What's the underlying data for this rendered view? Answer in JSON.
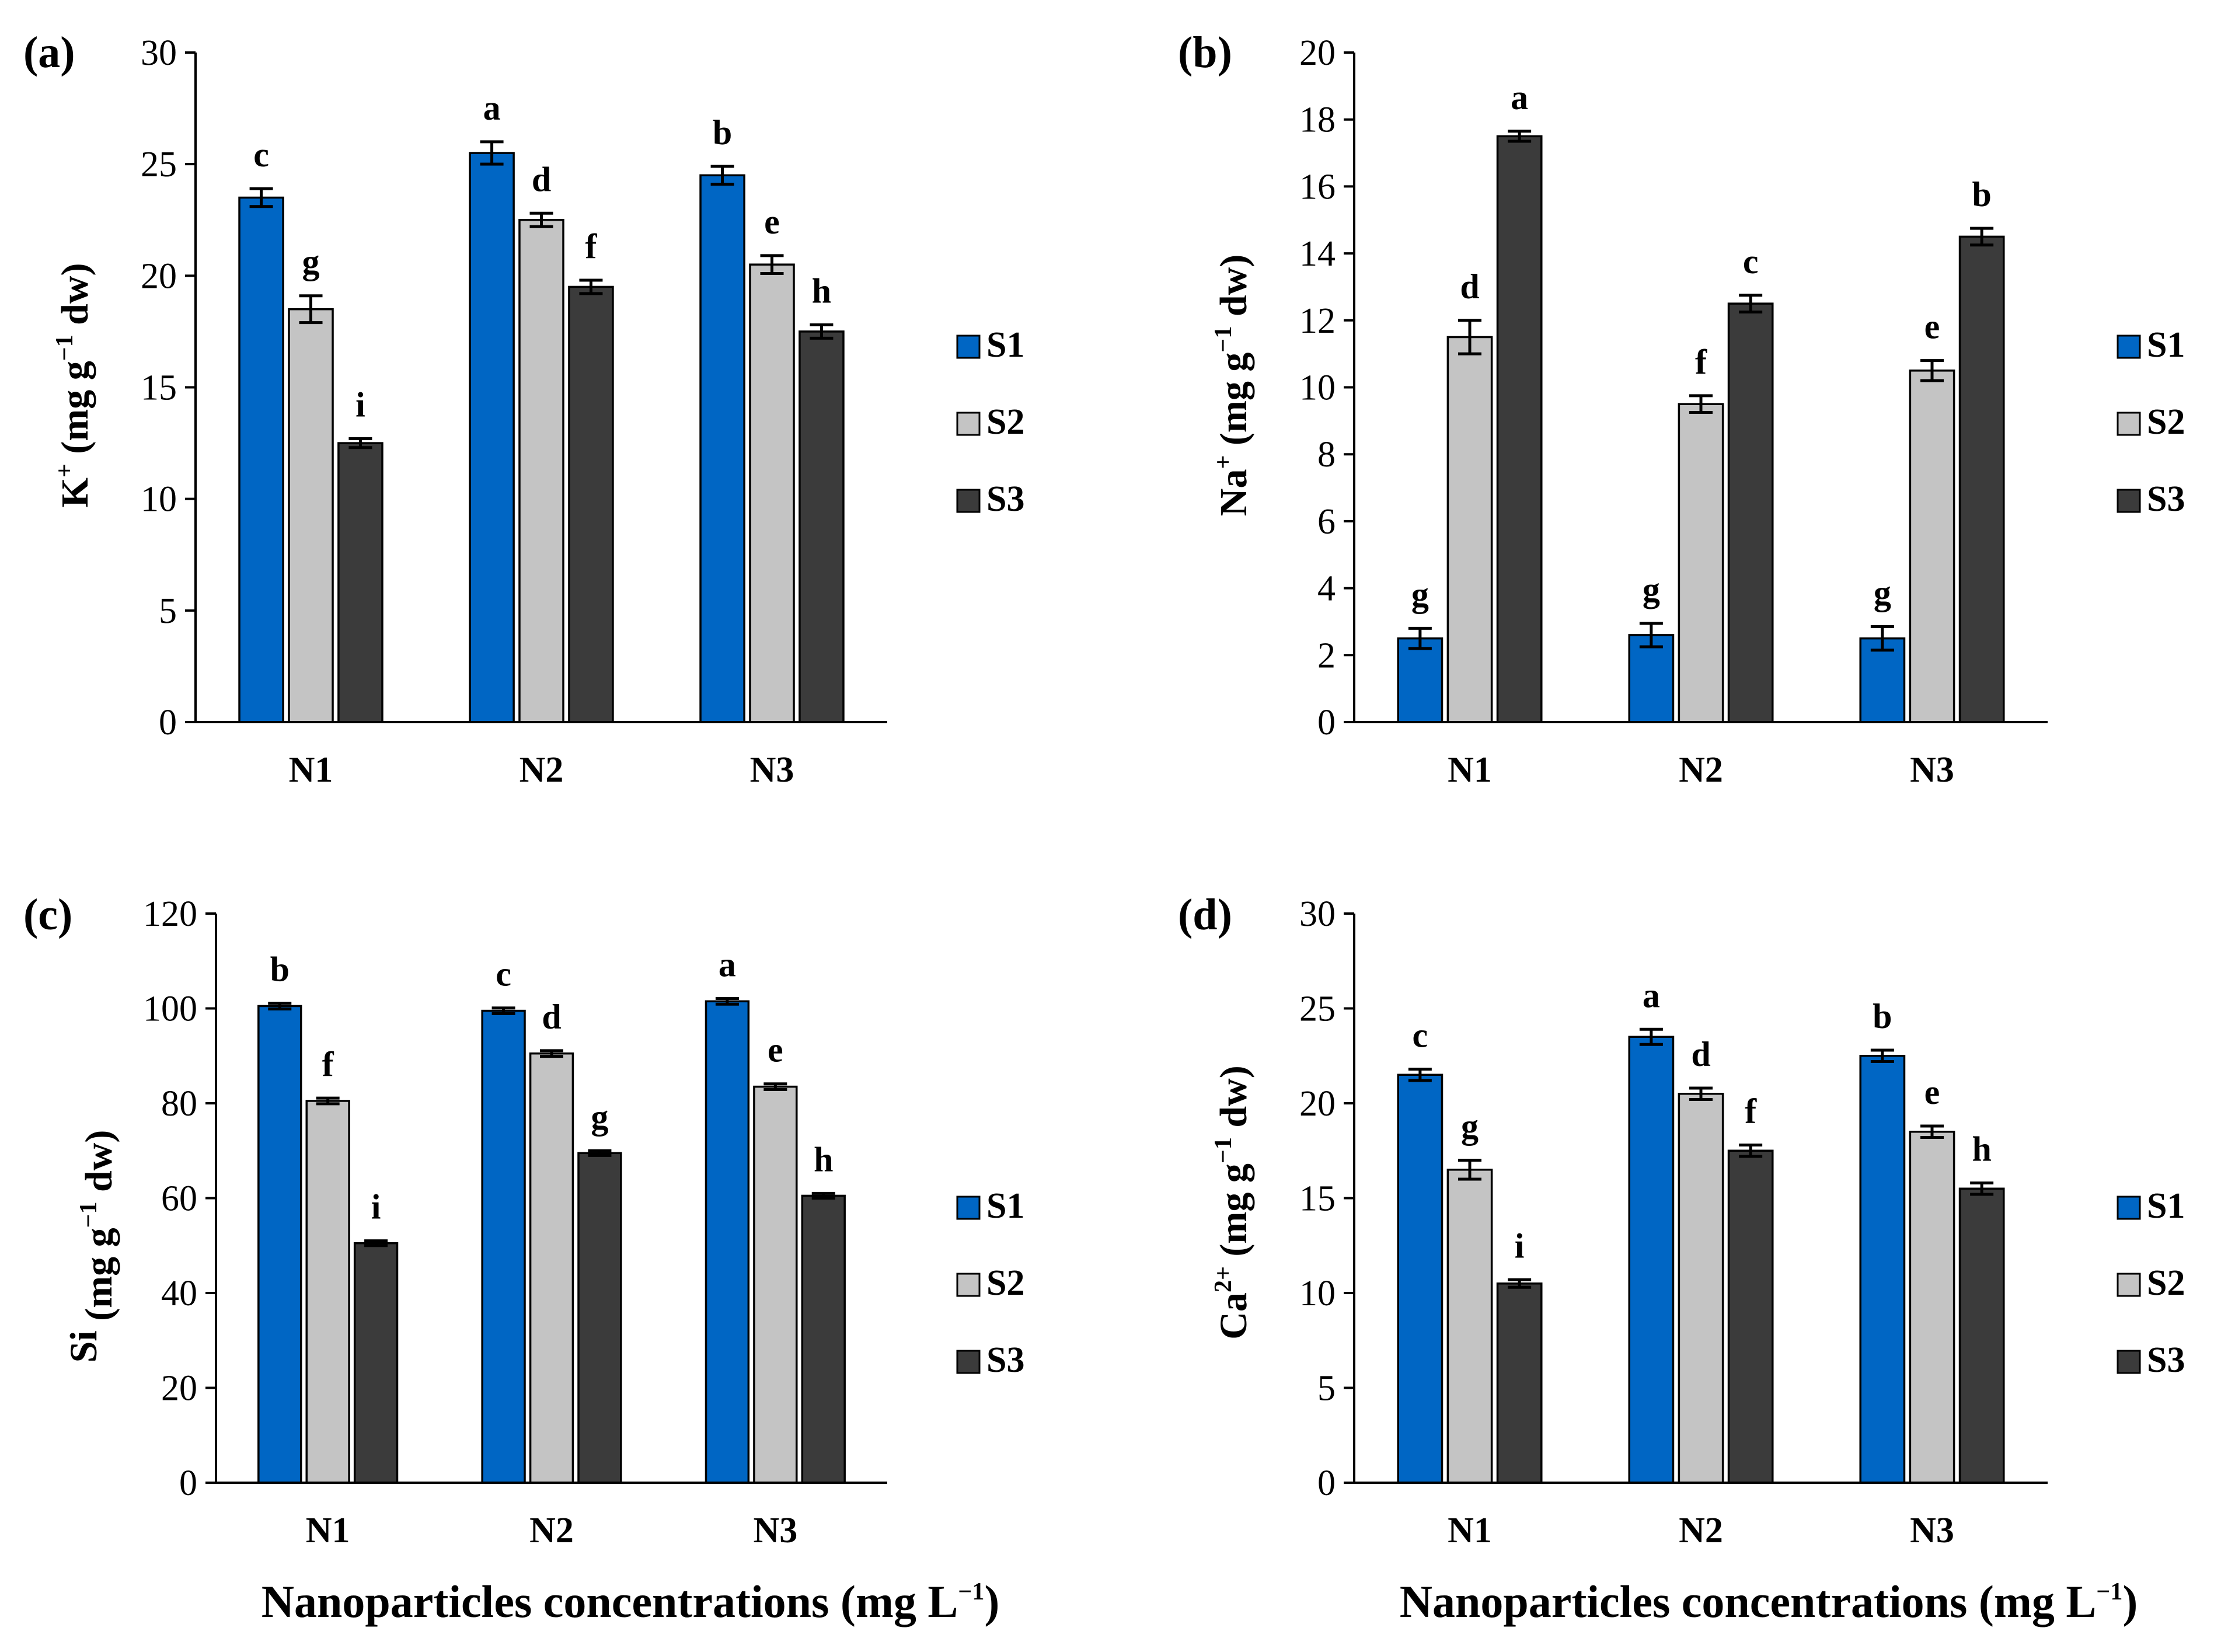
{
  "series": [
    {
      "name": "S1",
      "color": "#0066C4"
    },
    {
      "name": "S2",
      "color": "#C4C4C4"
    },
    {
      "name": "S3",
      "color": "#3B3B3B"
    }
  ],
  "x_axis_label": "Nanoparticles concentrations (mg L",
  "x_axis_label_sup": "−1",
  "x_axis_label_end": ")",
  "chart_data": [
    {
      "type": "bar",
      "panel_label": "(a)",
      "ylabel_base": "K",
      "ylabel_sup": "+",
      "ylabel_rest": " (mg g",
      "ylabel_unit_sup": "−1",
      "ylabel_end": " dw)",
      "categories": [
        "N1",
        "N2",
        "N3"
      ],
      "ylim": [
        0,
        30
      ],
      "yticks": [
        0,
        5,
        10,
        15,
        20,
        25,
        30
      ],
      "series": [
        {
          "name": "S1",
          "values": [
            23.5,
            25.5,
            24.5
          ],
          "errors": [
            0.4,
            0.5,
            0.4
          ],
          "letters": [
            "c",
            "a",
            "b"
          ]
        },
        {
          "name": "S2",
          "values": [
            18.5,
            22.5,
            20.5
          ],
          "errors": [
            0.6,
            0.3,
            0.4
          ],
          "letters": [
            "g",
            "d",
            "e"
          ]
        },
        {
          "name": "S3",
          "values": [
            12.5,
            19.5,
            17.5
          ],
          "errors": [
            0.2,
            0.3,
            0.3
          ],
          "letters": [
            "i",
            "f",
            "h"
          ]
        }
      ]
    },
    {
      "type": "bar",
      "panel_label": "(b)",
      "ylabel_base": "Na",
      "ylabel_sup": "+",
      "ylabel_rest": " (mg g",
      "ylabel_unit_sup": "−1",
      "ylabel_end": " dw)",
      "categories": [
        "N1",
        "N2",
        "N3"
      ],
      "ylim": [
        0,
        20
      ],
      "yticks": [
        0,
        2,
        4,
        6,
        8,
        10,
        12,
        14,
        16,
        18,
        20
      ],
      "series": [
        {
          "name": "S1",
          "values": [
            2.5,
            2.6,
            2.5
          ],
          "errors": [
            0.3,
            0.35,
            0.35
          ],
          "letters": [
            "g",
            "g",
            "g"
          ]
        },
        {
          "name": "S2",
          "values": [
            11.5,
            9.5,
            10.5
          ],
          "errors": [
            0.5,
            0.25,
            0.3
          ],
          "letters": [
            "d",
            "f",
            "e"
          ]
        },
        {
          "name": "S3",
          "values": [
            17.5,
            12.5,
            14.5
          ],
          "errors": [
            0.15,
            0.25,
            0.25
          ],
          "letters": [
            "a",
            "c",
            "b"
          ]
        }
      ]
    },
    {
      "type": "bar",
      "panel_label": "(c)",
      "ylabel_base": "Si",
      "ylabel_sup": "",
      "ylabel_rest": " (mg g",
      "ylabel_unit_sup": "−1",
      "ylabel_end": " dw)",
      "categories": [
        "N1",
        "N2",
        "N3"
      ],
      "ylim": [
        0,
        120
      ],
      "yticks": [
        0,
        20,
        40,
        60,
        80,
        100,
        120
      ],
      "series": [
        {
          "name": "S1",
          "values": [
            100.5,
            99.5,
            101.5
          ],
          "errors": [
            0.6,
            0.6,
            0.6
          ],
          "letters": [
            "b",
            "c",
            "a"
          ]
        },
        {
          "name": "S2",
          "values": [
            80.5,
            90.5,
            83.5
          ],
          "errors": [
            0.6,
            0.6,
            0.6
          ],
          "letters": [
            "f",
            "d",
            "e"
          ]
        },
        {
          "name": "S3",
          "values": [
            50.5,
            69.5,
            60.5
          ],
          "errors": [
            0.5,
            0.5,
            0.5
          ],
          "letters": [
            "i",
            "g",
            "h"
          ]
        }
      ]
    },
    {
      "type": "bar",
      "panel_label": "(d)",
      "ylabel_base": "Ca",
      "ylabel_sup": "2+",
      "ylabel_rest": " (mg g",
      "ylabel_unit_sup": "−1",
      "ylabel_end": " dw)",
      "categories": [
        "N1",
        "N2",
        "N3"
      ],
      "ylim": [
        0,
        30
      ],
      "yticks": [
        0,
        5,
        10,
        15,
        20,
        25,
        30
      ],
      "series": [
        {
          "name": "S1",
          "values": [
            21.5,
            23.5,
            22.5
          ],
          "errors": [
            0.3,
            0.4,
            0.3
          ],
          "letters": [
            "c",
            "a",
            "b"
          ]
        },
        {
          "name": "S2",
          "values": [
            16.5,
            20.5,
            18.5
          ],
          "errors": [
            0.5,
            0.3,
            0.3
          ],
          "letters": [
            "g",
            "d",
            "e"
          ]
        },
        {
          "name": "S3",
          "values": [
            10.5,
            17.5,
            15.5
          ],
          "errors": [
            0.2,
            0.3,
            0.3
          ],
          "letters": [
            "i",
            "f",
            "h"
          ]
        }
      ]
    }
  ]
}
